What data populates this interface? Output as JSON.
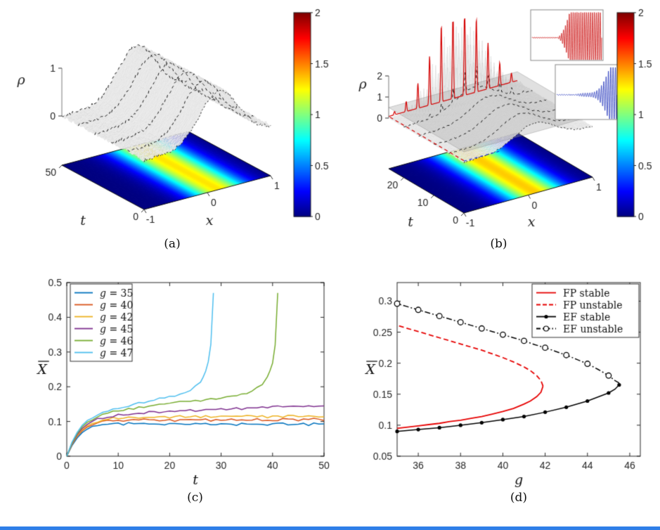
{
  "figure": {
    "labels": {
      "a": "(a)",
      "b": "(b)",
      "c": "(c)",
      "d": "(d)"
    },
    "background": "#ffffff",
    "bottom_strip_color": "#2f7fe8"
  },
  "chart_data": [
    {
      "id": "a",
      "type": "heatmap",
      "kind": "3d_surface_with_floor_projection",
      "zlabel": "ρ",
      "tlabel": "t",
      "xlabel": "x",
      "x_range": [
        -1,
        1
      ],
      "x_ticks": [
        -1,
        0,
        1
      ],
      "t_range": [
        0,
        50
      ],
      "t_ticks": [
        0,
        50
      ],
      "z_ticks": [
        0,
        1
      ],
      "colorbar": {
        "range": [
          0,
          2
        ],
        "ticks": [
          0,
          0.5,
          1,
          1.5,
          2
        ]
      },
      "surface": {
        "shape": "gaussian_ridge",
        "center": 0.18,
        "sigma": 0.3,
        "peak": 1.05,
        "noise": 0.035
      },
      "floor": {
        "center": 0.18,
        "sigma": 0.3,
        "peak": 1.3
      },
      "slice_line_ts": [
        0,
        10,
        20,
        30,
        40,
        50
      ]
    },
    {
      "id": "b",
      "type": "heatmap",
      "kind": "3d_surface_with_floor_projection_and_oscillation_insets",
      "zlabel": "ρ",
      "tlabel": "t",
      "xlabel": "x",
      "x_range": [
        -1,
        1
      ],
      "x_ticks": [
        -1,
        0,
        1
      ],
      "t_range": [
        0,
        25
      ],
      "t_ticks": [
        0,
        10,
        20
      ],
      "z_ticks": [
        0,
        1,
        2
      ],
      "colorbar": {
        "range": [
          0,
          2
        ],
        "ticks": [
          0,
          0.5,
          1,
          1.5,
          2
        ]
      },
      "surface": {
        "shape": "gaussian_ridge",
        "center": 0.1,
        "sigma": 0.3,
        "peak": 0.95,
        "noise": 0.03
      },
      "floor": {
        "center": 0.12,
        "sigma": 0.3,
        "peak": 1.35
      },
      "spikes": {
        "start_t": 14,
        "max_amp": 3.4,
        "freq": 11,
        "center": 0.08,
        "width": 0.38
      },
      "plane_z": 0.5,
      "slice_line_ts": [
        0,
        5,
        10,
        15,
        20
      ],
      "final_slice": {
        "color": "#d40000",
        "t": 25
      },
      "edge_trace": {
        "color": "#2233cc"
      },
      "insets": [
        {
          "signal_color": "#cc1111",
          "position": "top_right",
          "content": "onset of fast density oscillations"
        },
        {
          "signal_color": "#2233bb",
          "position": "right",
          "content": "growing oscillation envelope"
        }
      ]
    },
    {
      "id": "c",
      "type": "line",
      "xlabel": "t",
      "ylabel": "X̄",
      "xlim": [
        0,
        50
      ],
      "ylim": [
        0,
        0.5
      ],
      "x_ticks": [
        0,
        10,
        20,
        30,
        40,
        50
      ],
      "y_ticks": [
        0,
        0.1,
        0.2,
        0.3,
        0.4,
        0.5
      ],
      "legend": true,
      "legend_position": "top-left",
      "series": [
        {
          "name": "g = 35",
          "color": "#0072BD",
          "style": "solid",
          "t_step": 1,
          "jitter": 0.003,
          "v": [
            0,
            0.03,
            0.052,
            0.068,
            0.078,
            0.084,
            0.088,
            0.09,
            0.091,
            0.092,
            0.093,
            0.092,
            0.094,
            0.093,
            0.092,
            0.094,
            0.095,
            0.093,
            0.092,
            0.091,
            0.093,
            0.094,
            0.092,
            0.091,
            0.093,
            0.092,
            0.094,
            0.093,
            0.091,
            0.092,
            0.094,
            0.093,
            0.092,
            0.091,
            0.093,
            0.094,
            0.092,
            0.093,
            0.091,
            0.09,
            0.092,
            0.093,
            0.094,
            0.092,
            0.091,
            0.093,
            0.092,
            0.091,
            0.093,
            0.092,
            0.093
          ]
        },
        {
          "name": "g = 40",
          "color": "#D95319",
          "style": "solid",
          "t_step": 1,
          "jitter": 0.003,
          "v": [
            0,
            0.033,
            0.057,
            0.073,
            0.084,
            0.091,
            0.096,
            0.099,
            0.101,
            0.103,
            0.104,
            0.103,
            0.105,
            0.106,
            0.104,
            0.105,
            0.107,
            0.105,
            0.104,
            0.106,
            0.105,
            0.103,
            0.105,
            0.106,
            0.104,
            0.105,
            0.107,
            0.106,
            0.104,
            0.105,
            0.106,
            0.105,
            0.107,
            0.106,
            0.105,
            0.104,
            0.106,
            0.107,
            0.105,
            0.106,
            0.104,
            0.105,
            0.106,
            0.107,
            0.105,
            0.104,
            0.106,
            0.105,
            0.107,
            0.106,
            0.105
          ]
        },
        {
          "name": "g = 42",
          "color": "#EDB120",
          "style": "solid",
          "t_step": 1,
          "jitter": 0.003,
          "v": [
            0,
            0.034,
            0.059,
            0.076,
            0.088,
            0.095,
            0.1,
            0.104,
            0.107,
            0.109,
            0.11,
            0.112,
            0.111,
            0.113,
            0.112,
            0.114,
            0.113,
            0.112,
            0.114,
            0.115,
            0.113,
            0.114,
            0.116,
            0.114,
            0.113,
            0.115,
            0.114,
            0.116,
            0.115,
            0.113,
            0.114,
            0.116,
            0.115,
            0.113,
            0.114,
            0.115,
            0.116,
            0.114,
            0.115,
            0.113,
            0.115,
            0.116,
            0.114,
            0.115,
            0.116,
            0.115,
            0.114,
            0.116,
            0.115,
            0.113,
            0.115
          ]
        },
        {
          "name": "g = 45",
          "color": "#7E2F8E",
          "style": "solid",
          "t_step": 1,
          "jitter": 0.003,
          "v": [
            0,
            0.036,
            0.062,
            0.08,
            0.092,
            0.1,
            0.106,
            0.11,
            0.113,
            0.116,
            0.118,
            0.12,
            0.121,
            0.123,
            0.124,
            0.125,
            0.126,
            0.127,
            0.127,
            0.128,
            0.129,
            0.13,
            0.129,
            0.131,
            0.132,
            0.131,
            0.133,
            0.134,
            0.133,
            0.135,
            0.136,
            0.135,
            0.137,
            0.138,
            0.137,
            0.139,
            0.14,
            0.139,
            0.141,
            0.14,
            0.142,
            0.143,
            0.142,
            0.144,
            0.143,
            0.145,
            0.144,
            0.146,
            0.145,
            0.147,
            0.146
          ]
        },
        {
          "name": "g = 46",
          "color": "#77AC30",
          "style": "solid",
          "jitter": 0.003,
          "t": [
            0,
            1,
            2,
            3,
            4,
            5,
            6,
            7,
            8,
            9,
            10,
            11,
            12,
            13,
            14,
            15,
            16,
            17,
            18,
            19,
            20,
            21,
            22,
            23,
            24,
            25,
            26,
            27,
            28,
            29,
            30,
            31,
            32,
            33,
            34,
            35,
            36,
            37,
            38,
            39,
            39.5,
            40,
            40.5,
            41
          ],
          "v": [
            0,
            0.038,
            0.065,
            0.085,
            0.098,
            0.107,
            0.114,
            0.119,
            0.123,
            0.127,
            0.13,
            0.133,
            0.135,
            0.138,
            0.14,
            0.142,
            0.144,
            0.146,
            0.148,
            0.15,
            0.152,
            0.154,
            0.155,
            0.157,
            0.158,
            0.16,
            0.161,
            0.163,
            0.164,
            0.166,
            0.168,
            0.17,
            0.172,
            0.175,
            0.178,
            0.182,
            0.188,
            0.196,
            0.208,
            0.228,
            0.245,
            0.268,
            0.32,
            0.47
          ]
        },
        {
          "name": "g = 47",
          "color": "#4DBEEE",
          "style": "solid",
          "jitter": 0.003,
          "t": [
            0,
            1,
            2,
            3,
            4,
            5,
            6,
            7,
            8,
            9,
            10,
            11,
            12,
            13,
            14,
            15,
            16,
            17,
            18,
            19,
            20,
            21,
            22,
            23,
            24,
            25,
            26,
            26.5,
            27,
            27.5,
            28,
            28.5
          ],
          "v": [
            0,
            0.04,
            0.068,
            0.089,
            0.103,
            0.113,
            0.121,
            0.127,
            0.132,
            0.136,
            0.14,
            0.143,
            0.146,
            0.15,
            0.153,
            0.156,
            0.159,
            0.162,
            0.165,
            0.168,
            0.171,
            0.175,
            0.179,
            0.184,
            0.191,
            0.201,
            0.216,
            0.228,
            0.246,
            0.272,
            0.322,
            0.47
          ]
        }
      ]
    },
    {
      "id": "d",
      "type": "line",
      "xlabel": "g",
      "ylabel": "X̄",
      "xlim": [
        35,
        46.5
      ],
      "ylim": [
        0.05,
        0.33
      ],
      "x_ticks": [
        36,
        38,
        40,
        42,
        44,
        46
      ],
      "y_ticks": [
        0.05,
        0.1,
        0.15,
        0.2,
        0.25,
        0.3
      ],
      "legend": true,
      "legend_position": "top-right",
      "series": [
        {
          "name": "FP stable",
          "color": "#e60000",
          "style": "solid",
          "width": 1.8,
          "g": [
            35,
            35.5,
            36,
            36.5,
            37,
            37.5,
            38,
            38.5,
            39,
            39.5,
            40,
            40.5,
            41,
            41.3,
            41.6,
            41.8,
            41.9
          ],
          "v": [
            0.095,
            0.097,
            0.099,
            0.101,
            0.103,
            0.106,
            0.108,
            0.111,
            0.114,
            0.118,
            0.122,
            0.127,
            0.134,
            0.139,
            0.146,
            0.153,
            0.163
          ]
        },
        {
          "name": "FP unstable",
          "color": "#e60000",
          "style": "dashed",
          "width": 1.8,
          "g": [
            41.9,
            41.8,
            41.6,
            41.3,
            41,
            40.5,
            40,
            39.5,
            39,
            38.5,
            38,
            37.5,
            37,
            36.5,
            36,
            35.5,
            35
          ],
          "v": [
            0.163,
            0.172,
            0.18,
            0.188,
            0.194,
            0.202,
            0.209,
            0.215,
            0.221,
            0.226,
            0.231,
            0.236,
            0.241,
            0.246,
            0.251,
            0.256,
            0.261
          ]
        },
        {
          "name": "EF stable",
          "color": "#000000",
          "style": "solid",
          "width": 1.5,
          "marker": "filled-circle",
          "marker_at": [
            35,
            36,
            37,
            38,
            39,
            40,
            41,
            42,
            43,
            44,
            45,
            45.5
          ],
          "g": [
            35,
            36,
            37,
            38,
            39,
            40,
            41,
            42,
            43,
            44,
            45,
            45.3,
            45.5
          ],
          "v": [
            0.09,
            0.093,
            0.096,
            0.1,
            0.104,
            0.109,
            0.114,
            0.121,
            0.129,
            0.139,
            0.152,
            0.158,
            0.165
          ]
        },
        {
          "name": "EF unstable",
          "color": "#000000",
          "style": "dashdot",
          "width": 1.5,
          "marker": "open-circle",
          "marker_at": [
            45,
            44,
            43,
            42,
            41,
            40,
            39,
            38,
            37,
            36,
            35
          ],
          "g": [
            45.5,
            45.3,
            45,
            44.5,
            44,
            43.5,
            43,
            42.5,
            42,
            41.5,
            41,
            40.5,
            40,
            39.5,
            39,
            38.5,
            38,
            37.5,
            37,
            36.5,
            36,
            35.5,
            35
          ],
          "v": [
            0.168,
            0.172,
            0.18,
            0.19,
            0.199,
            0.206,
            0.213,
            0.219,
            0.225,
            0.23,
            0.236,
            0.241,
            0.246,
            0.251,
            0.256,
            0.261,
            0.266,
            0.271,
            0.276,
            0.281,
            0.286,
            0.291,
            0.296
          ]
        }
      ]
    }
  ]
}
